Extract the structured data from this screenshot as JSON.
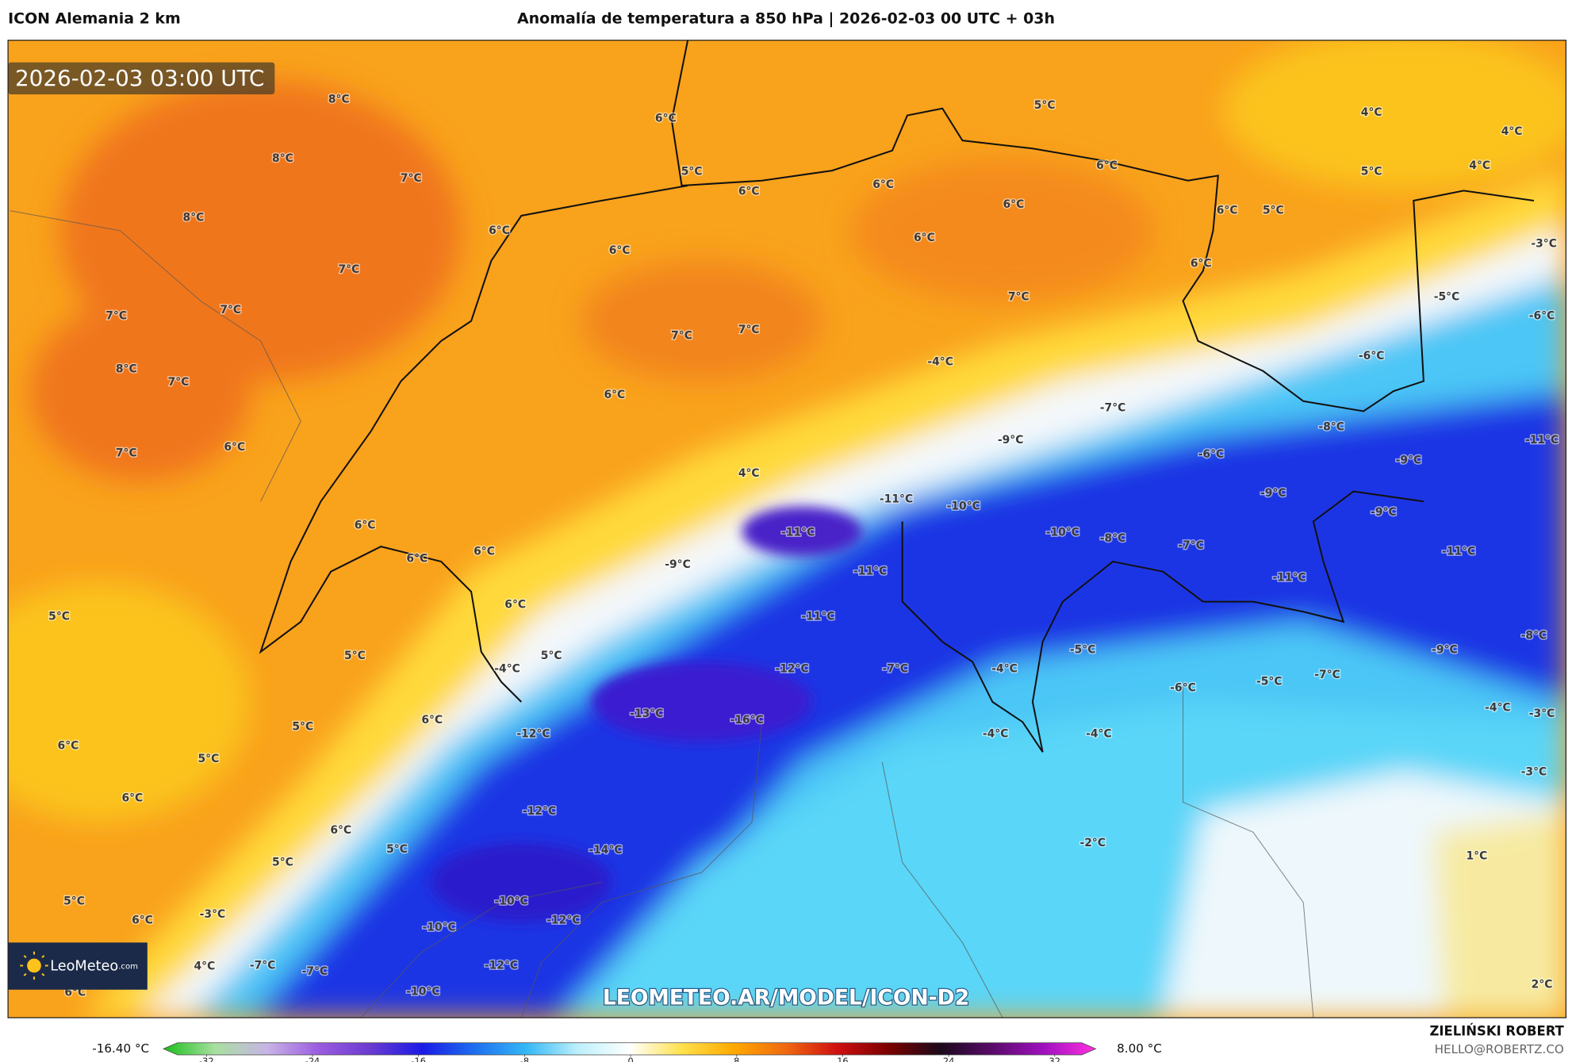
{
  "header": {
    "model": "ICON Alemania 2 km",
    "title": "Anomalía de temperatura a 850 hPa | 2026-02-03 00 UTC + 03h"
  },
  "map": {
    "timestamp": "2026-02-03 03:00 UTC",
    "watermark": "LEOMETEO.AR/MODEL/ICON-D2",
    "logo": "LeoMeteo",
    "logo_suffix": ".com",
    "labels": [
      "8°C",
      "8°C",
      "7°C",
      "8°C",
      "7°C",
      "7°C",
      "7°C",
      "8°C",
      "7°C",
      "7°C",
      "6°C",
      "6°C",
      "5°C",
      "6°C",
      "6°C",
      "6°C",
      "6°C",
      "5°C",
      "6°C",
      "6°C",
      "6°C",
      "4°C",
      "4°C",
      "4°C",
      "5°C",
      "5°C",
      "6°C",
      "-3°C",
      "6°C",
      "7°C",
      "7°C",
      "7°C",
      "-5°C",
      "-6°C",
      "-6°C",
      "-4°C",
      "6°C",
      "-7°C",
      "-8°C",
      "-9°C",
      "-6°C",
      "-11°C",
      "-9°C",
      "4°C",
      "-9°C",
      "-11°C",
      "-10°C",
      "-9°C",
      "6°C",
      "-11°C",
      "-10°C",
      "-8°C",
      "-7°C",
      "-11°C",
      "6°C",
      "6°C",
      "-9°C",
      "-11°C",
      "-11°C",
      "6°C",
      "5°C",
      "-11°C",
      "-8°C",
      "-9°C",
      "5°C",
      "5°C",
      "-5°C",
      "-4°C",
      "-12°C",
      "-7°C",
      "-4°C",
      "-7°C",
      "-5°C",
      "-6°C",
      "5°C",
      "6°C",
      "-13°C",
      "-16°C",
      "-4°C",
      "-3°C",
      "-12°C",
      "-4°C",
      "-4°C",
      "6°C",
      "5°C",
      "-3°C",
      "6°C",
      "-12°C",
      "6°C",
      "-2°C",
      "5°C",
      "-14°C",
      "1°C",
      "5°C",
      "5°C",
      "-10°C",
      "6°C",
      "-3°C",
      "-12°C",
      "-10°C",
      "4°C",
      "-7°C",
      "-7°C",
      "-12°C",
      "6°C",
      "-10°C",
      "2°C"
    ]
  },
  "colorbar": {
    "min_label": "-16.40 °C",
    "max_label": "8.00 °C",
    "lim": [
      -35.25,
      35.1
    ],
    "ticks": [
      -32,
      -24,
      -16,
      -8,
      0,
      8,
      16,
      24,
      32
    ],
    "colors": [
      "#1bbf1b",
      "#a8e0a0",
      "#c8b4e6",
      "#9b5ce0",
      "#6a3ad0",
      "#1a1ae6",
      "#1e6ef0",
      "#33b8f5",
      "#bdf0fb",
      "#ffffff",
      "#ffe14d",
      "#ffaa00",
      "#f06a10",
      "#d01010",
      "#7a0000",
      "#1a0a1a",
      "#5a0a6a",
      "#a010c0",
      "#ff30e0"
    ]
  },
  "footer": {
    "author": "ZIELIŃSKI ROBERT",
    "email": "HELLO@ROBERTZ.CO"
  }
}
